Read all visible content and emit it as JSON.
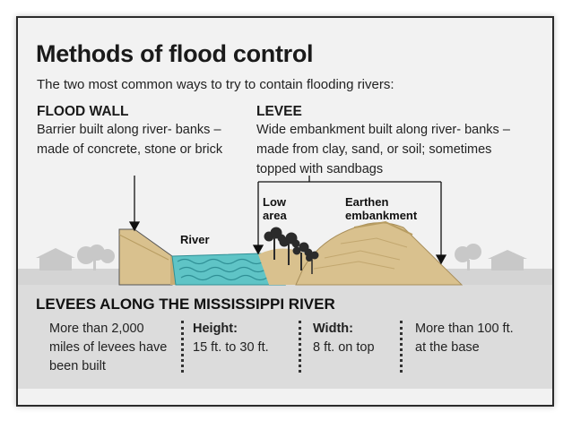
{
  "title": "Methods of flood control",
  "subtitle": "The two most common ways to try to contain flooding rivers:",
  "flood_wall": {
    "heading": "FLOOD WALL",
    "description": "Barrier built along river- banks – made of concrete, stone or brick"
  },
  "levee": {
    "heading": "LEVEE",
    "description": "Wide embankment built along river- banks – made from clay, sand, or soil; sometimes topped with sandbags"
  },
  "diagram_labels": {
    "river": "River",
    "low_area": "Low area",
    "earthen_embankment": "Earthen embankment"
  },
  "mississippi": {
    "title": "LEVEES ALONG THE MISSISSIPPI RIVER",
    "stat1": "More than 2,000 miles of levees have been built",
    "height_label": "Height:",
    "height_value": "15 ft. to 30 ft.",
    "width_label": "Width:",
    "width_value": "8 ft. on top",
    "base_value": "More than 100 ft. at the base"
  },
  "colors": {
    "sand": "#d9c18e",
    "water": "#5fc4c6",
    "ground": "#cfcfcf",
    "tree": "#2b2b2b"
  }
}
